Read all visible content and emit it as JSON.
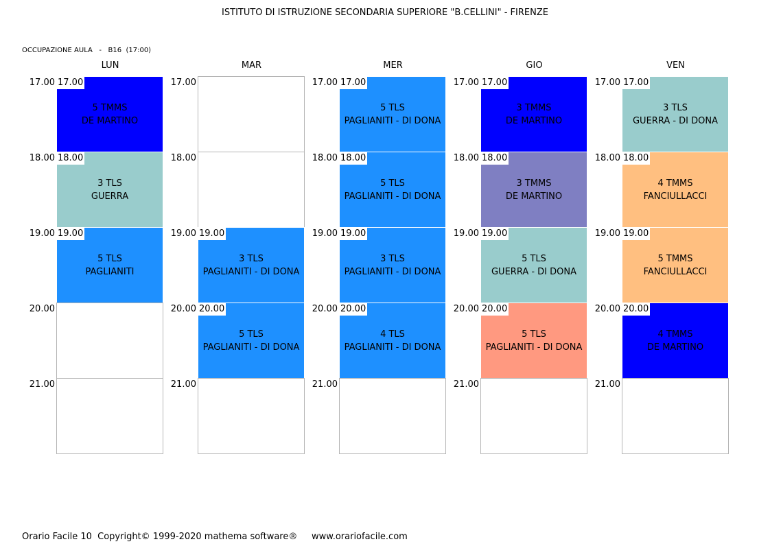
{
  "header": {
    "title": "ISTITUTO DI ISTRUZIONE SECONDARIA SUPERIORE \"B.CELLINI\" - FIRENZE",
    "subtitle": "OCCUPAZIONE AULA   -   B16  (17:00)"
  },
  "colors": {
    "blue": "#0000ff",
    "azure": "#1e90ff",
    "teal": "#99cccc",
    "slate": "#7f7fc2",
    "peach": "#ffbf80",
    "salmon": "#ff9980"
  },
  "days": [
    {
      "label": "LUN",
      "slots": [
        {
          "time": "17.00",
          "line1": "5 TMMS",
          "line2": "DE MARTINO",
          "color": "#0000ff"
        },
        {
          "time": "18.00",
          "line1": "3 TLS",
          "line2": "GUERRA",
          "color": "#99cccc"
        },
        {
          "time": "19.00",
          "line1": "5 TLS",
          "line2": "PAGLIANITI",
          "color": "#1e90ff"
        },
        {
          "time": "",
          "line1": "",
          "line2": "",
          "color": ""
        },
        {
          "time": "",
          "line1": "",
          "line2": "",
          "color": ""
        }
      ]
    },
    {
      "label": "MAR",
      "slots": [
        {
          "time": "",
          "line1": "",
          "line2": "",
          "color": ""
        },
        {
          "time": "",
          "line1": "",
          "line2": "",
          "color": ""
        },
        {
          "time": "19.00",
          "line1": "3 TLS",
          "line2": "PAGLIANITI - DI DONA",
          "color": "#1e90ff"
        },
        {
          "time": "20.00",
          "line1": "5 TLS",
          "line2": "PAGLIANITI - DI DONA",
          "color": "#1e90ff"
        },
        {
          "time": "",
          "line1": "",
          "line2": "",
          "color": ""
        }
      ]
    },
    {
      "label": "MER",
      "slots": [
        {
          "time": "17.00",
          "line1": "5 TLS",
          "line2": "PAGLIANITI - DI DONA",
          "color": "#1e90ff"
        },
        {
          "time": "18.00",
          "line1": "5 TLS",
          "line2": "PAGLIANITI - DI DONA",
          "color": "#1e90ff"
        },
        {
          "time": "19.00",
          "line1": "3 TLS",
          "line2": "PAGLIANITI - DI DONA",
          "color": "#1e90ff"
        },
        {
          "time": "20.00",
          "line1": "4 TLS",
          "line2": "PAGLIANITI - DI DONA",
          "color": "#1e90ff"
        },
        {
          "time": "",
          "line1": "",
          "line2": "",
          "color": ""
        }
      ]
    },
    {
      "label": "GIO",
      "slots": [
        {
          "time": "17.00",
          "line1": "3 TMMS",
          "line2": "DE MARTINO",
          "color": "#0000ff"
        },
        {
          "time": "18.00",
          "line1": "3 TMMS",
          "line2": "DE MARTINO",
          "color": "#7f7fc2"
        },
        {
          "time": "19.00",
          "line1": "5 TLS",
          "line2": "GUERRA - DI DONA",
          "color": "#99cccc"
        },
        {
          "time": "20.00",
          "line1": "5 TLS",
          "line2": "PAGLIANITI - DI DONA",
          "color": "#ff9980"
        },
        {
          "time": "",
          "line1": "",
          "line2": "",
          "color": ""
        }
      ]
    },
    {
      "label": "VEN",
      "slots": [
        {
          "time": "17.00",
          "line1": "3 TLS",
          "line2": "GUERRA - DI DONA",
          "color": "#99cccc"
        },
        {
          "time": "18.00",
          "line1": "4 TMMS",
          "line2": "FANCIULLACCI",
          "color": "#ffbf80"
        },
        {
          "time": "19.00",
          "line1": "5 TMMS",
          "line2": "FANCIULLACCI",
          "color": "#ffbf80"
        },
        {
          "time": "20.00",
          "line1": "4 TMMS",
          "line2": "DE MARTINO",
          "color": "#0000ff"
        },
        {
          "time": "",
          "line1": "",
          "line2": "",
          "color": ""
        }
      ]
    }
  ],
  "hours": [
    "17.00",
    "18.00",
    "19.00",
    "20.00",
    "21.00"
  ],
  "footer": {
    "text": "Orario Facile 10  Copyright© 1999-2020 mathema software®     www.orariofacile.com"
  }
}
